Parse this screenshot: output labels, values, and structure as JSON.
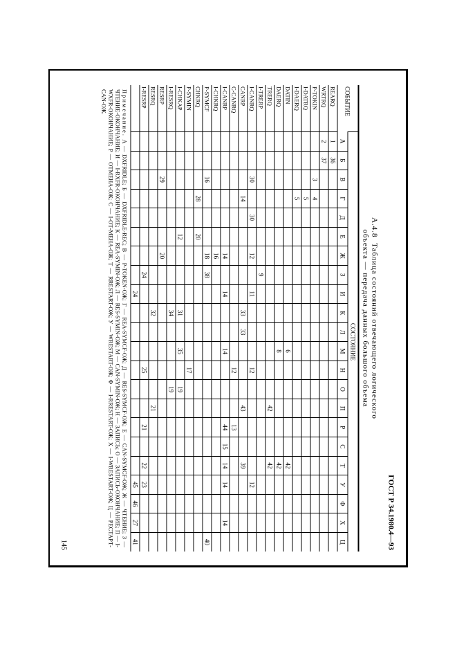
{
  "standard_header": "ГОСТ Р 34.1980.4—93",
  "page_number": "145",
  "table_number": "А.4.8",
  "table_title_line1": "Таблица состояний отвечающего логического",
  "table_title_line2": "объекта — передача данных большого объема",
  "group_header": "СОСТОЯНИЕ",
  "columns": [
    "СОБЫТИЕ",
    "А",
    "Б",
    "В",
    "Г",
    "Д",
    "Е",
    "Ж",
    "З",
    "И",
    "К",
    "Л",
    "М",
    "Н",
    "О",
    "П",
    "Р",
    "С",
    "Т",
    "У",
    "Ф",
    "Х",
    "Ц"
  ],
  "rows": [
    {
      "ev": "REARQ",
      "c": [
        "1",
        "36",
        "",
        "",
        "",
        "",
        "",
        "",
        "",
        "",
        "",
        "",
        "",
        "",
        "",
        "",
        "",
        "",
        "",
        "",
        "",
        ""
      ]
    },
    {
      "ev": "WRTRQ",
      "c": [
        "2",
        "37",
        "",
        "",
        "",
        "",
        "",
        "",
        "",
        "",
        "",
        "",
        "",
        "",
        "",
        "",
        "",
        "",
        "",
        "",
        "",
        ""
      ]
    },
    {
      "ev": "P-TOKIN",
      "c": [
        "",
        "",
        "3",
        "4",
        "",
        "",
        "",
        "",
        "",
        "",
        "",
        "",
        "",
        "",
        "",
        "",
        "",
        "",
        "",
        "",
        "",
        ""
      ]
    },
    {
      "ev": "I-DATRQ",
      "c": [
        "",
        "",
        "",
        "5",
        "",
        "",
        "",
        "",
        "",
        "",
        "",
        "",
        "",
        "",
        "",
        "",
        "",
        "",
        "",
        "",
        "",
        ""
      ]
    },
    {
      "ev": "I-DAERQ",
      "c": [
        "",
        "",
        "",
        "5",
        "",
        "",
        "",
        "",
        "",
        "",
        "",
        "",
        "",
        "",
        "",
        "",
        "",
        "",
        "",
        "",
        "",
        ""
      ]
    },
    {
      "ev": "DATIN",
      "c": [
        "",
        "",
        "",
        "",
        "",
        "",
        "",
        "",
        "",
        "",
        "",
        "6",
        "",
        "",
        "",
        "",
        "",
        "42",
        "",
        "",
        "",
        ""
      ]
    },
    {
      "ev": "DAERQ",
      "c": [
        "",
        "",
        "",
        "",
        "",
        "",
        "",
        "",
        "",
        "",
        "",
        "8",
        "",
        "",
        "",
        "",
        "",
        "42",
        "",
        "",
        "",
        ""
      ]
    },
    {
      "ev": "TRERQ",
      "c": [
        "",
        "",
        "",
        "",
        "",
        "",
        "",
        "",
        "",
        "",
        "",
        "",
        "",
        "",
        "42",
        "",
        "",
        "42",
        "",
        "",
        "",
        ""
      ]
    },
    {
      "ev": "I-TRERP",
      "c": [
        "",
        "",
        "",
        "",
        "",
        "",
        "",
        "9",
        "",
        "",
        "",
        "",
        "",
        "",
        "",
        "",
        "",
        "",
        "",
        "",
        "",
        ""
      ]
    },
    {
      "ev": "I-CANRQ",
      "c": [
        "",
        "",
        "30",
        "",
        "30",
        "",
        "12",
        "",
        "11",
        "",
        "",
        "",
        "12",
        "",
        "",
        "",
        "",
        "",
        "12",
        "",
        "",
        ""
      ]
    },
    {
      "ev": "CANRP",
      "c": [
        "",
        "",
        "",
        "14",
        "",
        "",
        "",
        "",
        "",
        "33",
        "33",
        "",
        "",
        "",
        "43",
        "",
        "",
        "39",
        "",
        "",
        "",
        ""
      ]
    },
    {
      "ev": "C-CANRQ",
      "c": [
        "",
        "",
        "",
        "",
        "",
        "",
        "",
        "",
        "",
        "",
        "",
        "",
        "12",
        "",
        "",
        "13",
        "",
        "",
        "",
        "",
        "",
        ""
      ]
    },
    {
      "ev": "I-CANRP",
      "c": [
        "",
        "",
        "",
        "",
        "",
        "",
        "14",
        "",
        "14",
        "",
        "",
        "14",
        "",
        "",
        "",
        "44",
        "15",
        "14",
        "14",
        "",
        "14",
        ""
      ]
    },
    {
      "ev": "I-CHKRQ",
      "c": [
        "",
        "",
        "",
        "",
        "",
        "",
        "16",
        "",
        "",
        "",
        "",
        "",
        "",
        "",
        "",
        "",
        "",
        "",
        "",
        "",
        "",
        ""
      ]
    },
    {
      "ev": "P-SYMCF",
      "c": [
        "",
        "",
        "16",
        "",
        "",
        "",
        "18",
        "38",
        "",
        "",
        "",
        "",
        "",
        "",
        "",
        "",
        "",
        "",
        "",
        "",
        "",
        "40"
      ]
    },
    {
      "ev": "CHKRQ",
      "c": [
        "",
        "",
        "",
        "28",
        "",
        "20",
        "",
        "",
        "",
        "",
        "",
        "",
        "",
        "",
        "",
        "",
        "",
        "",
        "",
        "",
        "",
        ""
      ]
    },
    {
      "ev": "P-SYMIN",
      "c": [
        "",
        "",
        "",
        "",
        "",
        "",
        "",
        "",
        "",
        "",
        "",
        "",
        "17",
        "",
        "",
        "",
        "",
        "",
        "",
        "",
        "",
        ""
      ]
    },
    {
      "ev": "I-CHKAP",
      "c": [
        "",
        "",
        "",
        "",
        "",
        "12",
        "",
        "",
        "",
        "31",
        "",
        "35",
        "",
        "19",
        "",
        "",
        "",
        "",
        "",
        "",
        "",
        ""
      ]
    },
    {
      "ev": "I-RESRQ",
      "c": [
        "",
        "",
        "",
        "",
        "",
        "",
        "",
        "",
        "",
        "34",
        "",
        "",
        "",
        "19",
        "",
        "",
        "",
        "",
        "",
        "",
        "",
        ""
      ]
    },
    {
      "ev": "RESRP",
      "c": [
        "",
        "",
        "29",
        "",
        "",
        "",
        "20",
        "",
        "",
        "",
        "",
        "",
        "",
        "",
        "",
        "",
        "",
        "",
        "",
        "",
        "",
        ""
      ]
    },
    {
      "ev": "RESRQ",
      "c": [
        "",
        "",
        "",
        "",
        "",
        "",
        "",
        "",
        "",
        "32",
        "",
        "",
        "",
        "",
        "21",
        "",
        "",
        "",
        "",
        "",
        "",
        ""
      ]
    },
    {
      "ev": "I-RESRP",
      "c": [
        "",
        "",
        "",
        "",
        "",
        "",
        "",
        "24",
        "",
        "",
        "",
        "",
        "25",
        "",
        "",
        "21",
        "",
        "22",
        "23",
        "",
        "",
        ""
      ]
    },
    {
      "ev": "",
      "c": [
        "",
        "",
        "",
        "",
        "",
        "",
        "",
        "",
        "24",
        "",
        "",
        "",
        "",
        "",
        "",
        "",
        "",
        "",
        "45",
        "46",
        "27",
        "41"
      ]
    }
  ],
  "note_label": "Примечание.",
  "note_body": " А — DXFRIDLE; Б — DXFRIDLE-REC; В — P-TOKEN-ОЖ; Г — REA-SYMCF-ОЖ; Д — RES-SYMCF-ОЖ; Е — CAN-SYMCF-ОЖ; Ж — ЧТЕНИЕ; З — ЧТЕНИЕ-ОКОНЧАНИЕ; И — I-RXFR-ОКОНЧАНИЕ; К — REA-SYMIN-ОЖ; Л — RES-SYMIN-ОЖ; М — CAN-SYMIN-ОЖ; Н — ЗАПИСЬ; О — ЗАПИСЬ-ОКОНЧАНИЕ; П — I-WXFR-ОКОНЧАНИЕ; Р — ОТМЕНА-ОЖ; С — I-ОТ-МЕНА-ОЖ; Т — RRESTART-ОЖ; У — WRESTART-ОЖ; Ф — I-RRESTART-ОЖ; Х — I-WRESTART-ОЖ; Ц — РЕСТАРТ-CAN-ОЖ."
}
